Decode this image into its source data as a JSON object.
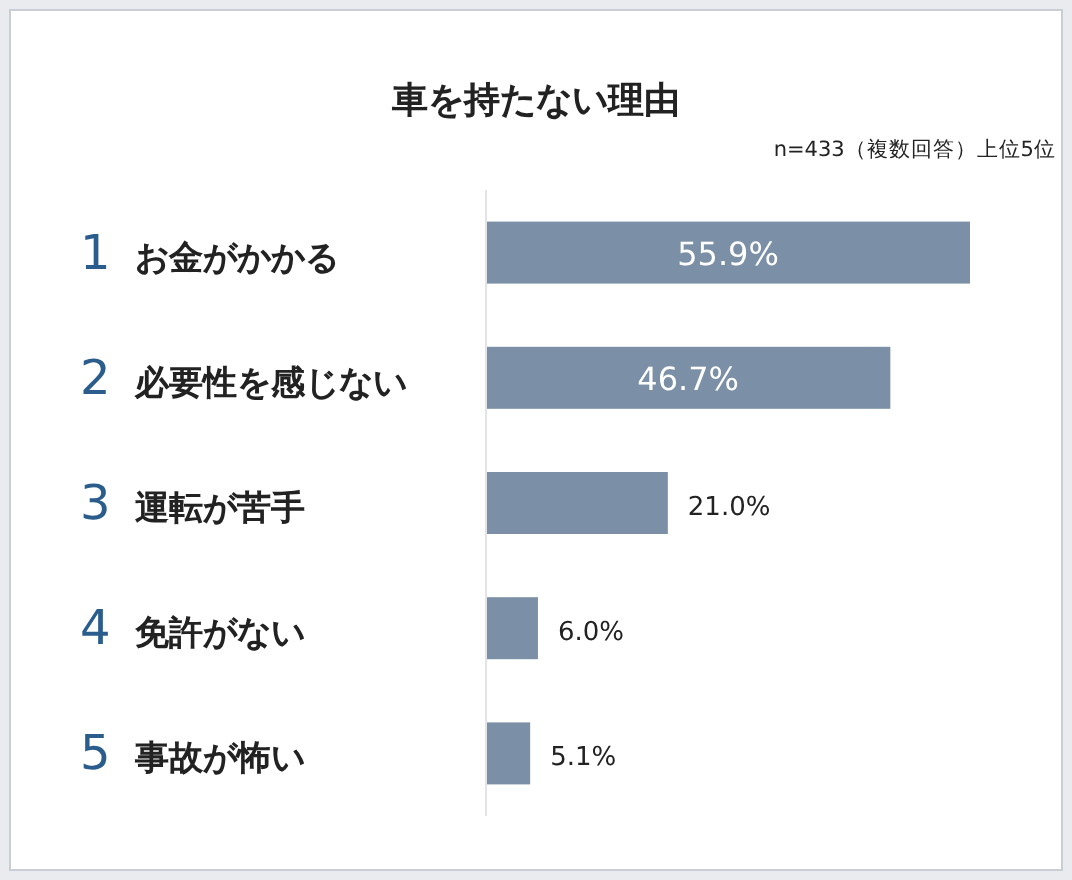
{
  "chart_data": {
    "type": "bar",
    "orientation": "horizontal",
    "title": "車を持たない理由",
    "subtitle": "n=433（複数回答）上位5位",
    "categories": [
      "1 お金がかかる",
      "2 必要性を感じない",
      "3 運転が苦手",
      "4 免許がない",
      "5 事故が怖い"
    ],
    "values": [
      55.9,
      46.7,
      21.0,
      6.0,
      5.1
    ],
    "color": "#7b8fa6",
    "value_labels": [
      "55.9%",
      "46.7%",
      "21.0%",
      "6.0%",
      "5.1%"
    ]
  }
}
